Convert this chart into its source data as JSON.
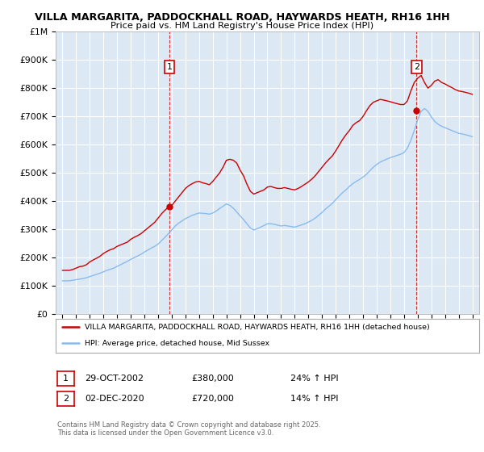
{
  "title_line1": "VILLA MARGARITA, PADDOCKHALL ROAD, HAYWARDS HEATH, RH16 1HH",
  "title_line2": "Price paid vs. HM Land Registry's House Price Index (HPI)",
  "ylabel_ticks": [
    "£0",
    "£100K",
    "£200K",
    "£300K",
    "£400K",
    "£500K",
    "£600K",
    "£700K",
    "£800K",
    "£900K",
    "£1M"
  ],
  "ytick_values": [
    0,
    100000,
    200000,
    300000,
    400000,
    500000,
    600000,
    700000,
    800000,
    900000,
    1000000
  ],
  "xlim": [
    1994.5,
    2025.5
  ],
  "ylim": [
    0,
    1000000
  ],
  "background_color": "#dce9f5",
  "grid_color": "#ffffff",
  "red_line_color": "#cc0000",
  "blue_line_color": "#88bbee",
  "marker1_date_x": 2002.83,
  "marker1_y": 380000,
  "marker2_date_x": 2020.92,
  "marker2_y": 720000,
  "dashed_line_color": "#cc3333",
  "xtick_years": [
    1995,
    1996,
    1997,
    1998,
    1999,
    2000,
    2001,
    2002,
    2003,
    2004,
    2005,
    2006,
    2007,
    2008,
    2009,
    2010,
    2011,
    2012,
    2013,
    2014,
    2015,
    2016,
    2017,
    2018,
    2019,
    2020,
    2021,
    2022,
    2023,
    2024,
    2025
  ],
  "legend_red_label": "VILLA MARGARITA, PADDOCKHALL ROAD, HAYWARDS HEATH, RH16 1HH (detached house)",
  "legend_blue_label": "HPI: Average price, detached house, Mid Sussex",
  "sale1_date": "29-OCT-2002",
  "sale1_price": "£380,000",
  "sale1_hpi": "24% ↑ HPI",
  "sale2_date": "02-DEC-2020",
  "sale2_price": "£720,000",
  "sale2_hpi": "14% ↑ HPI",
  "footer": "Contains HM Land Registry data © Crown copyright and database right 2025.\nThis data is licensed under the Open Government Licence v3.0.",
  "red_x": [
    1995.0,
    1995.25,
    1995.5,
    1995.75,
    1996.0,
    1996.25,
    1996.5,
    1996.75,
    1997.0,
    1997.25,
    1997.5,
    1997.75,
    1998.0,
    1998.25,
    1998.5,
    1998.75,
    1999.0,
    1999.25,
    1999.5,
    1999.75,
    2000.0,
    2000.25,
    2000.5,
    2000.75,
    2001.0,
    2001.25,
    2001.5,
    2001.75,
    2002.0,
    2002.25,
    2002.5,
    2002.75,
    2003.0,
    2003.25,
    2003.5,
    2003.75,
    2004.0,
    2004.25,
    2004.5,
    2004.75,
    2005.0,
    2005.25,
    2005.5,
    2005.75,
    2006.0,
    2006.25,
    2006.5,
    2006.75,
    2007.0,
    2007.25,
    2007.5,
    2007.75,
    2008.0,
    2008.25,
    2008.5,
    2008.75,
    2009.0,
    2009.25,
    2009.5,
    2009.75,
    2010.0,
    2010.25,
    2010.5,
    2010.75,
    2011.0,
    2011.25,
    2011.5,
    2011.75,
    2012.0,
    2012.25,
    2012.5,
    2012.75,
    2013.0,
    2013.25,
    2013.5,
    2013.75,
    2014.0,
    2014.25,
    2014.5,
    2014.75,
    2015.0,
    2015.25,
    2015.5,
    2015.75,
    2016.0,
    2016.25,
    2016.5,
    2016.75,
    2017.0,
    2017.25,
    2017.5,
    2017.75,
    2018.0,
    2018.25,
    2018.5,
    2018.75,
    2019.0,
    2019.25,
    2019.5,
    2019.75,
    2020.0,
    2020.25,
    2020.5,
    2020.75,
    2021.0,
    2021.25,
    2021.5,
    2021.75,
    2022.0,
    2022.25,
    2022.5,
    2022.75,
    2023.0,
    2023.25,
    2023.5,
    2023.75,
    2024.0,
    2024.25,
    2024.5,
    2024.75,
    2025.0
  ],
  "red_y": [
    155000,
    155000,
    155000,
    158000,
    163000,
    168000,
    170000,
    175000,
    185000,
    192000,
    198000,
    205000,
    215000,
    222000,
    228000,
    232000,
    240000,
    245000,
    250000,
    255000,
    265000,
    272000,
    278000,
    285000,
    295000,
    305000,
    315000,
    325000,
    340000,
    355000,
    368000,
    378000,
    385000,
    400000,
    415000,
    430000,
    445000,
    455000,
    462000,
    468000,
    470000,
    465000,
    462000,
    458000,
    470000,
    485000,
    500000,
    520000,
    545000,
    548000,
    545000,
    535000,
    510000,
    490000,
    460000,
    435000,
    425000,
    430000,
    435000,
    440000,
    450000,
    452000,
    448000,
    445000,
    445000,
    448000,
    445000,
    442000,
    440000,
    445000,
    452000,
    460000,
    468000,
    478000,
    490000,
    505000,
    520000,
    535000,
    548000,
    560000,
    578000,
    598000,
    618000,
    635000,
    650000,
    668000,
    678000,
    685000,
    700000,
    720000,
    738000,
    750000,
    755000,
    760000,
    758000,
    755000,
    752000,
    748000,
    745000,
    742000,
    742000,
    755000,
    790000,
    820000,
    835000,
    845000,
    820000,
    800000,
    810000,
    825000,
    830000,
    820000,
    815000,
    808000,
    802000,
    795000,
    790000,
    788000,
    785000,
    782000,
    778000
  ],
  "blue_x": [
    1995.0,
    1995.25,
    1995.5,
    1995.75,
    1996.0,
    1996.25,
    1996.5,
    1996.75,
    1997.0,
    1997.25,
    1997.5,
    1997.75,
    1998.0,
    1998.25,
    1998.5,
    1998.75,
    1999.0,
    1999.25,
    1999.5,
    1999.75,
    2000.0,
    2000.25,
    2000.5,
    2000.75,
    2001.0,
    2001.25,
    2001.5,
    2001.75,
    2002.0,
    2002.25,
    2002.5,
    2002.75,
    2003.0,
    2003.25,
    2003.5,
    2003.75,
    2004.0,
    2004.25,
    2004.5,
    2004.75,
    2005.0,
    2005.25,
    2005.5,
    2005.75,
    2006.0,
    2006.25,
    2006.5,
    2006.75,
    2007.0,
    2007.25,
    2007.5,
    2007.75,
    2008.0,
    2008.25,
    2008.5,
    2008.75,
    2009.0,
    2009.25,
    2009.5,
    2009.75,
    2010.0,
    2010.25,
    2010.5,
    2010.75,
    2011.0,
    2011.25,
    2011.5,
    2011.75,
    2012.0,
    2012.25,
    2012.5,
    2012.75,
    2013.0,
    2013.25,
    2013.5,
    2013.75,
    2014.0,
    2014.25,
    2014.5,
    2014.75,
    2015.0,
    2015.25,
    2015.5,
    2015.75,
    2016.0,
    2016.25,
    2016.5,
    2016.75,
    2017.0,
    2017.25,
    2017.5,
    2017.75,
    2018.0,
    2018.25,
    2018.5,
    2018.75,
    2019.0,
    2019.25,
    2019.5,
    2019.75,
    2020.0,
    2020.25,
    2020.5,
    2020.75,
    2021.0,
    2021.25,
    2021.5,
    2021.75,
    2022.0,
    2022.25,
    2022.5,
    2022.75,
    2023.0,
    2023.25,
    2023.5,
    2023.75,
    2024.0,
    2024.25,
    2024.5,
    2024.75,
    2025.0
  ],
  "blue_y": [
    118000,
    118000,
    118000,
    120000,
    122000,
    124000,
    126000,
    129000,
    133000,
    137000,
    141000,
    145000,
    150000,
    155000,
    159000,
    163000,
    169000,
    175000,
    181000,
    187000,
    194000,
    200000,
    206000,
    212000,
    220000,
    227000,
    234000,
    240000,
    248000,
    260000,
    272000,
    285000,
    298000,
    312000,
    322000,
    330000,
    338000,
    344000,
    350000,
    354000,
    358000,
    357000,
    356000,
    354000,
    358000,
    365000,
    374000,
    382000,
    390000,
    385000,
    375000,
    362000,
    348000,
    335000,
    320000,
    305000,
    298000,
    302000,
    308000,
    314000,
    320000,
    320000,
    318000,
    315000,
    312000,
    314000,
    312000,
    310000,
    308000,
    312000,
    316000,
    320000,
    326000,
    332000,
    340000,
    350000,
    360000,
    372000,
    382000,
    392000,
    405000,
    418000,
    430000,
    440000,
    452000,
    462000,
    470000,
    477000,
    485000,
    495000,
    508000,
    520000,
    530000,
    538000,
    544000,
    549000,
    554000,
    558000,
    562000,
    566000,
    572000,
    588000,
    615000,
    650000,
    688000,
    718000,
    728000,
    718000,
    698000,
    682000,
    672000,
    665000,
    660000,
    655000,
    650000,
    645000,
    640000,
    638000,
    635000,
    632000,
    628000
  ]
}
